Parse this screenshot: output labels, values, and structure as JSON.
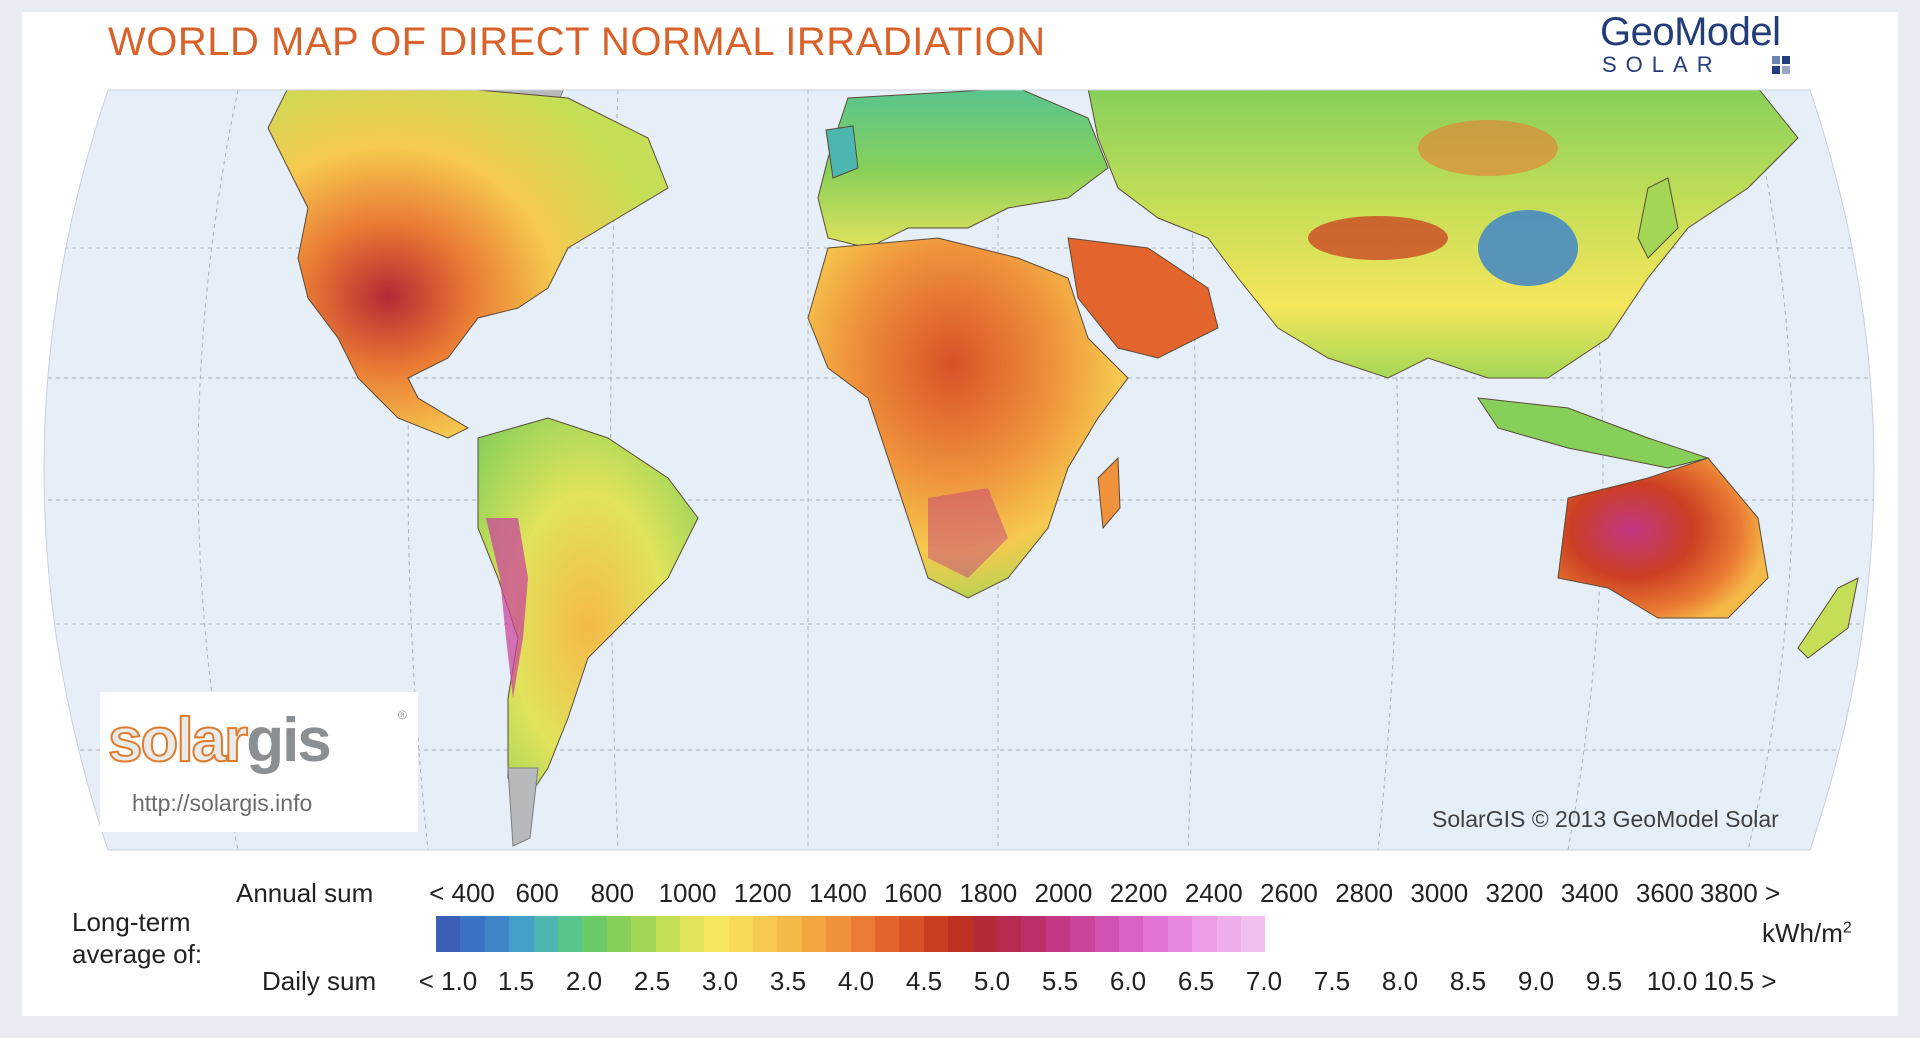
{
  "title": "WORLD MAP OF DIRECT NORMAL IRRADIATION",
  "brand": {
    "name": "GeoModel",
    "sub": "SOLAR",
    "color": "#233d7a"
  },
  "solargis": {
    "logo_a": "solar",
    "logo_b": "gis",
    "url": "http://solargis.info",
    "reg": "®"
  },
  "copyright": "SolarGIS © 2013 GeoModel Solar",
  "legend": {
    "heading": [
      "Long-term",
      "average of:"
    ],
    "annual_label": "Annual sum",
    "daily_label": "Daily sum",
    "unit": "kWh/m",
    "unit_sup": "2",
    "annual_ticks": [
      "< 400",
      "600",
      "800",
      "1000",
      "1200",
      "1400",
      "1600",
      "1800",
      "2000",
      "2200",
      "2400",
      "2600",
      "2800",
      "3000",
      "3200",
      "3400",
      "3600",
      "3800 >"
    ],
    "daily_ticks": [
      "< 1.0",
      "1.5",
      "2.0",
      "2.5",
      "3.0",
      "3.5",
      "4.0",
      "4.5",
      "5.0",
      "5.5",
      "6.0",
      "6.5",
      "7.0",
      "7.5",
      "8.0",
      "8.5",
      "9.0",
      "9.5",
      "10.0",
      "10.5 >"
    ],
    "colors": [
      "#3a5fb4",
      "#3c72c2",
      "#3f86c9",
      "#44a0c6",
      "#4db6b0",
      "#58c48e",
      "#6ccb68",
      "#86d05a",
      "#a4d755",
      "#c4de57",
      "#e1e35b",
      "#f6e65c",
      "#f8da56",
      "#f6c94f",
      "#f5b948",
      "#f2a641",
      "#ef923b",
      "#ea7b34",
      "#e3652d",
      "#d85127",
      "#cb3e22",
      "#be3021",
      "#b42a35",
      "#b62b4f",
      "#bc306a",
      "#c23885",
      "#c9459c",
      "#d052b2",
      "#d862c4",
      "#e073d3",
      "#e788de",
      "#ec9be6",
      "#f0adeb",
      "#f3bfef"
    ]
  }
}
